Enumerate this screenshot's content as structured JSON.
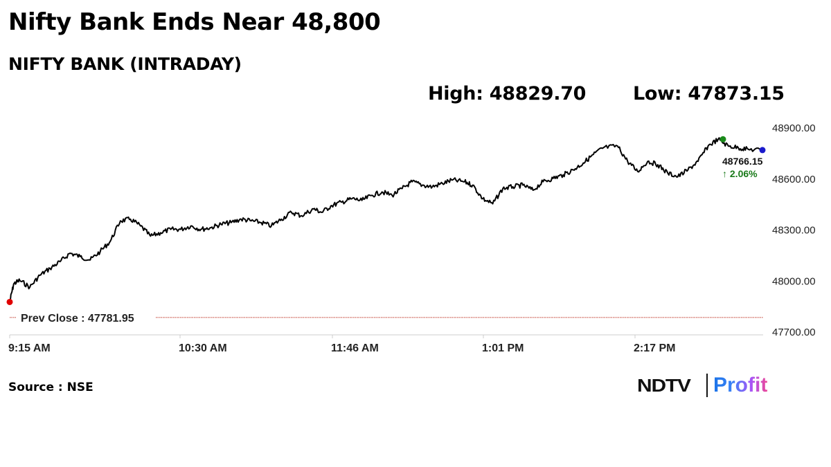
{
  "header": {
    "title": "Nifty Bank Ends Near 48,800",
    "subtitle": "NIFTY BANK (INTRADAY)",
    "high_label": "High: 48829.70",
    "low_label": "Low: 47873.15"
  },
  "footer": {
    "source": "Source : NSE",
    "logo_left": "NDTV",
    "logo_right": "Profit"
  },
  "colors": {
    "line": "#000000",
    "start_marker": "#e00000",
    "high_marker": "#1a8a1a",
    "end_marker": "#1a1acc",
    "change_positive": "#1a7a1a",
    "prev_close_line": "#c0392b",
    "axis": "#dddddd"
  },
  "chart_data": {
    "type": "line",
    "title": "NIFTY BANK (INTRADAY)",
    "xlabel": "",
    "ylabel": "",
    "ylim": [
      47700,
      48900
    ],
    "y_ticks": [
      "48900.00",
      "48600.00",
      "48300.00",
      "48000.00",
      "47700.00"
    ],
    "x_ticks": [
      "9:15 AM",
      "10:30 AM",
      "11:46 AM",
      "1:01 PM",
      "2:17 PM"
    ],
    "grid": false,
    "legend": null,
    "prev_close": 47781.95,
    "prev_close_label": "Prev Close : 47781.95",
    "high": 48829.7,
    "low": 47873.15,
    "last": 48766.15,
    "last_label": "48766.15",
    "change_label": "↑ 2.06%",
    "change_pct": 2.06,
    "series": [
      {
        "name": "NIFTY BANK",
        "x": [
          "9:15",
          "9:17",
          "9:20",
          "9:25",
          "9:30",
          "9:35",
          "9:40",
          "9:45",
          "9:50",
          "9:55",
          "10:00",
          "10:05",
          "10:10",
          "10:15",
          "10:20",
          "10:25",
          "10:30",
          "10:35",
          "10:40",
          "10:45",
          "10:50",
          "10:55",
          "11:00",
          "11:05",
          "11:10",
          "11:15",
          "11:20",
          "11:25",
          "11:30",
          "11:35",
          "11:40",
          "11:46",
          "11:50",
          "11:55",
          "12:00",
          "12:05",
          "12:10",
          "12:15",
          "12:20",
          "12:25",
          "12:30",
          "12:35",
          "12:40",
          "12:45",
          "12:50",
          "12:55",
          "13:01",
          "13:05",
          "13:10",
          "13:15",
          "13:20",
          "13:25",
          "13:30",
          "13:35",
          "13:40",
          "13:45",
          "13:50",
          "13:55",
          "14:00",
          "14:05",
          "14:10",
          "14:17",
          "14:22",
          "14:27",
          "14:32",
          "14:37",
          "14:42",
          "14:47",
          "14:52",
          "14:57",
          "15:02",
          "15:07",
          "15:12",
          "15:17",
          "15:22",
          "15:29"
        ],
        "values": [
          47873,
          47980,
          48000,
          47960,
          48030,
          48070,
          48110,
          48160,
          48140,
          48120,
          48170,
          48230,
          48350,
          48360,
          48320,
          48260,
          48280,
          48300,
          48300,
          48320,
          48300,
          48310,
          48330,
          48340,
          48360,
          48350,
          48340,
          48320,
          48360,
          48400,
          48380,
          48420,
          48400,
          48440,
          48460,
          48480,
          48470,
          48500,
          48520,
          48500,
          48540,
          48580,
          48560,
          48550,
          48570,
          48590,
          48580,
          48560,
          48480,
          48450,
          48540,
          48550,
          48560,
          48530,
          48580,
          48600,
          48620,
          48650,
          48690,
          48740,
          48780,
          48790,
          48700,
          48640,
          48700,
          48680,
          48630,
          48610,
          48650,
          48700,
          48790,
          48830,
          48790,
          48780,
          48770,
          48766
        ]
      }
    ]
  }
}
